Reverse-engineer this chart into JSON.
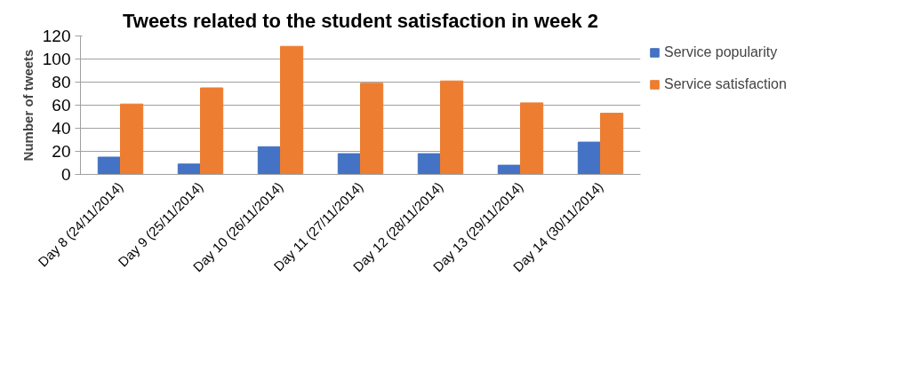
{
  "chart_data": {
    "type": "bar",
    "title": "Tweets related to the student satisfaction in week 2",
    "ylabel": "Number of tweets",
    "categories": [
      "Day 8 (24/11/2014)",
      "Day 9 (25/11/2014)",
      "Day 10 (26/11/2014)",
      "Day 11 (27/11/2014)",
      "Day 12 (28/11/2014)",
      "Day 13 (29/11/2014)",
      "Day 14 (30/11/2014)"
    ],
    "series": [
      {
        "name": "Service popularity",
        "color": "#4472c4",
        "values": [
          15,
          9,
          24,
          18,
          18,
          8,
          28
        ]
      },
      {
        "name": "Service satisfaction",
        "color": "#ed7d31",
        "values": [
          61,
          75,
          111,
          79,
          81,
          62,
          53
        ]
      }
    ],
    "ylim": [
      0,
      120
    ],
    "yticks": [
      0,
      20,
      40,
      60,
      80,
      100,
      120
    ],
    "grid": "y",
    "legend": "right"
  }
}
